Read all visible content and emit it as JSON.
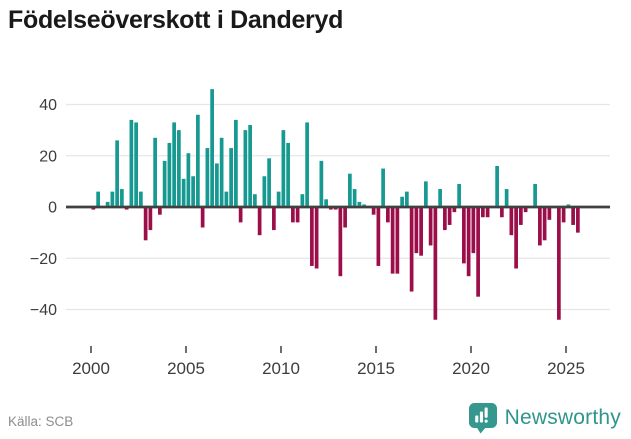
{
  "title": "Födelseöverskott i Danderyd",
  "source": {
    "label": "Källa: SCB"
  },
  "branding": {
    "wordmark": "Newsworthy",
    "logo_icon": "bar-chart-speech-bubble-icon",
    "brand_color": "#35988e"
  },
  "colors": {
    "positive_bar": "#169990",
    "negative_bar": "#9c0e4a",
    "gridline": "#e6e6e6",
    "zero_line": "#404040",
    "axis_text": "#3d3d3d",
    "tick_mark": "#4a4a4a",
    "title_text": "#191919",
    "source_text": "#8d8d8d"
  },
  "chart_data": {
    "type": "bar",
    "title": "Födelseöverskott i Danderyd",
    "frequency": "quarterly",
    "start_period": "2000-Q1",
    "end_period": "2025-Q3",
    "values": [
      -1,
      6,
      0,
      2,
      6,
      26,
      7,
      -1,
      34,
      33,
      6,
      -13,
      -9,
      27,
      -3,
      18,
      25,
      33,
      30,
      11,
      21,
      12,
      36,
      -8,
      23,
      46,
      17,
      27,
      6,
      23,
      34,
      -6,
      30,
      32,
      5,
      -11,
      12,
      19,
      -9,
      6,
      30,
      25,
      -6,
      -6,
      5,
      33,
      -23,
      -24,
      18,
      3,
      -1,
      -1,
      -27,
      -8,
      13,
      7,
      2,
      1,
      0,
      -3,
      -23,
      15,
      -6,
      -26,
      -26,
      4,
      6,
      -33,
      -18,
      -19,
      10,
      -15,
      -44,
      7,
      -9,
      -7,
      -2,
      9,
      -22,
      -27,
      -18,
      -35,
      -4,
      -4,
      0,
      16,
      -4,
      7,
      -11,
      -24,
      -7,
      -2,
      0,
      9,
      -15,
      -13,
      -5,
      0,
      -44,
      -6,
      1,
      -7,
      -10
    ],
    "x_ticks": [
      2000,
      2005,
      2010,
      2015,
      2020,
      2025
    ],
    "y_ticks": [
      40,
      20,
      0,
      -20,
      -40
    ],
    "y_tick_labels": [
      "40",
      "20",
      "0",
      "−20",
      "−40"
    ],
    "ylim": [
      -47,
      47
    ],
    "xlabel": "",
    "ylabel": "",
    "grid": "horizontal",
    "legend": "none",
    "positive_color": "#169990",
    "negative_color": "#9c0e4a"
  }
}
